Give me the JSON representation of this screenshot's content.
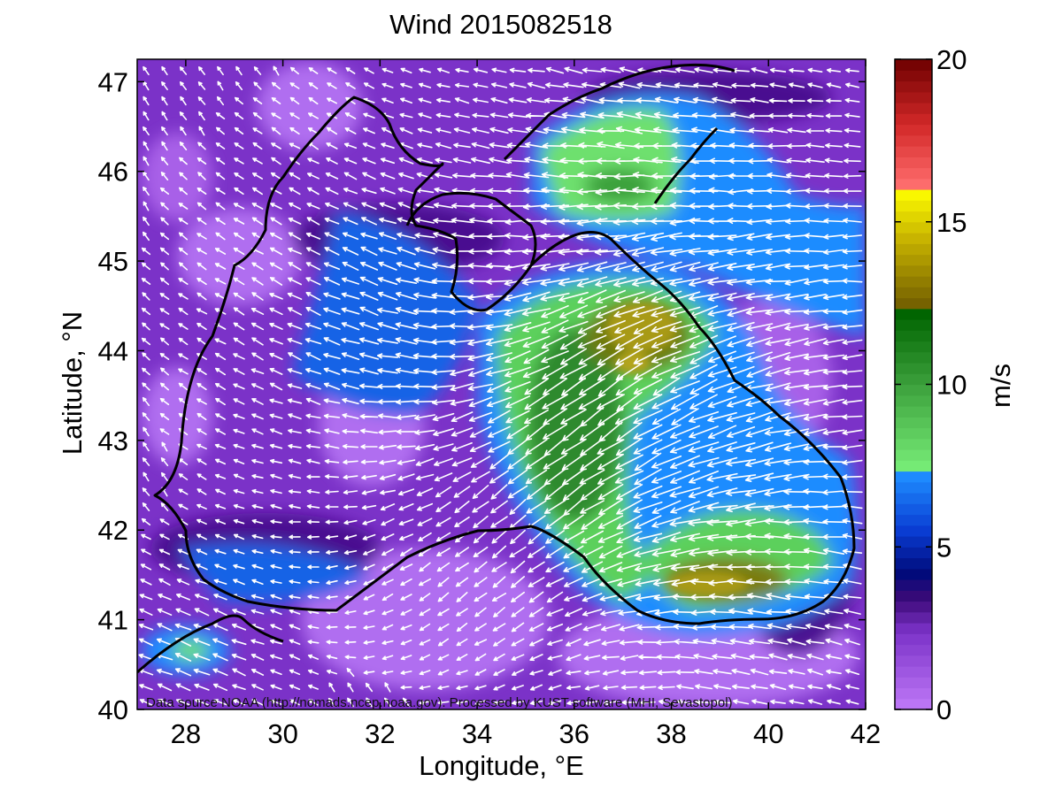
{
  "map": {
    "title": "Wind 2015082518",
    "xlabel": "Longitude, °E",
    "ylabel": "Latitude, °N",
    "credit": "Data source NOAA (http://nomads.ncep.noaa.gov). Processed by KUST software (MHI, Sevastopol)",
    "extent": {
      "lon": [
        27,
        42
      ],
      "lat": [
        40,
        47.25
      ]
    },
    "x_ticks": [
      "28",
      "30",
      "32",
      "34",
      "36",
      "38",
      "40",
      "42"
    ],
    "y_ticks": [
      "40",
      "41",
      "42",
      "43",
      "44",
      "45",
      "46",
      "47"
    ],
    "colorbar": {
      "label": "m/s",
      "range": [
        0,
        20
      ],
      "ticks": [
        "0",
        "5",
        "10",
        "15",
        "20"
      ],
      "stops": [
        {
          "v": 0,
          "color": "#c07af8"
        },
        {
          "v": 2.4,
          "color": "#7b32c8"
        },
        {
          "v": 3.4,
          "color": "#3c0a78"
        },
        {
          "v": 4.2,
          "color": "#000a7a"
        },
        {
          "v": 5.5,
          "color": "#0a3cd2"
        },
        {
          "v": 7.2,
          "color": "#1e8cff"
        },
        {
          "v": 7.3,
          "color": "#7af07a"
        },
        {
          "v": 10,
          "color": "#3ca03c"
        },
        {
          "v": 12.2,
          "color": "#006400"
        },
        {
          "v": 12.3,
          "color": "#6e5a00"
        },
        {
          "v": 14.5,
          "color": "#c8b400"
        },
        {
          "v": 16.0,
          "color": "#ffff00"
        },
        {
          "v": 16.1,
          "color": "#ff6e6e"
        },
        {
          "v": 18,
          "color": "#d22828"
        },
        {
          "v": 20,
          "color": "#6e0000"
        }
      ]
    }
  }
}
